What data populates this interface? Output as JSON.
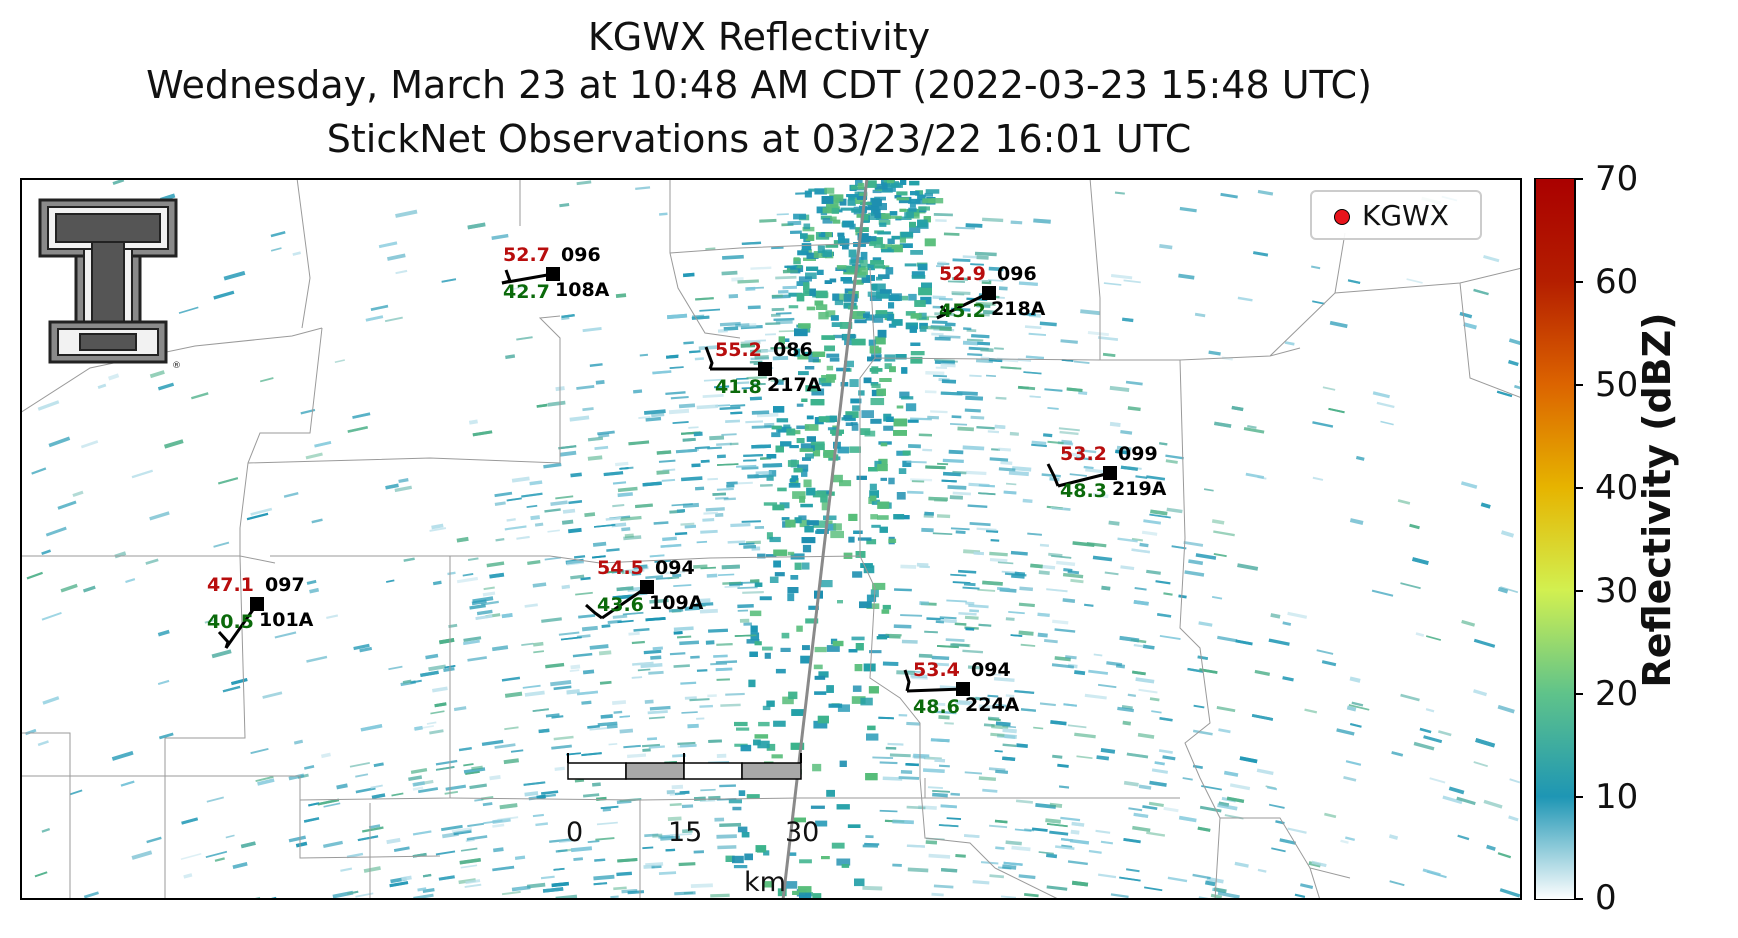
{
  "title": {
    "line1": "KGWX Reflectivity",
    "line2": "Wednesday, March 23 at 10:48 AM CDT (2022-03-23 15:48 UTC)",
    "line3": "StickNet Observations at 03/23/22 16:01 UTC"
  },
  "legend": {
    "label": "KGWX",
    "marker_color": "#e8141c"
  },
  "logo": {
    "name": "texas-tech-double-t-logo",
    "mark": "®"
  },
  "colorbar": {
    "label": "Reflectivity (dBZ)",
    "min": 0,
    "max": 70,
    "ticks": [
      "0",
      "10",
      "20",
      "30",
      "40",
      "50",
      "60",
      "70"
    ],
    "colors": [
      "#ffffff",
      "#1e96b4",
      "#5fc38a",
      "#d2f050",
      "#e6b400",
      "#dc6400",
      "#b41e00",
      "#aa0000"
    ]
  },
  "scalebar": {
    "ticks": [
      "0",
      "15",
      "30"
    ],
    "unit": "km"
  },
  "stations": [
    {
      "id": "108A",
      "temp": "52.7",
      "dewpoint": "42.7",
      "wind_dir": "096"
    },
    {
      "id": "218A",
      "temp": "52.9",
      "dewpoint": "45.2",
      "wind_dir": "096"
    },
    {
      "id": "217A",
      "temp": "55.2",
      "dewpoint": "41.8",
      "wind_dir": "086"
    },
    {
      "id": "219A",
      "temp": "53.2",
      "dewpoint": "48.3",
      "wind_dir": "099"
    },
    {
      "id": "101A",
      "temp": "47.1",
      "dewpoint": "40.5",
      "wind_dir": "097"
    },
    {
      "id": "109A",
      "temp": "54.5",
      "dewpoint": "43.6",
      "wind_dir": "094"
    },
    {
      "id": "224A",
      "temp": "53.4",
      "dewpoint": "48.6",
      "wind_dir": "094"
    }
  ]
}
